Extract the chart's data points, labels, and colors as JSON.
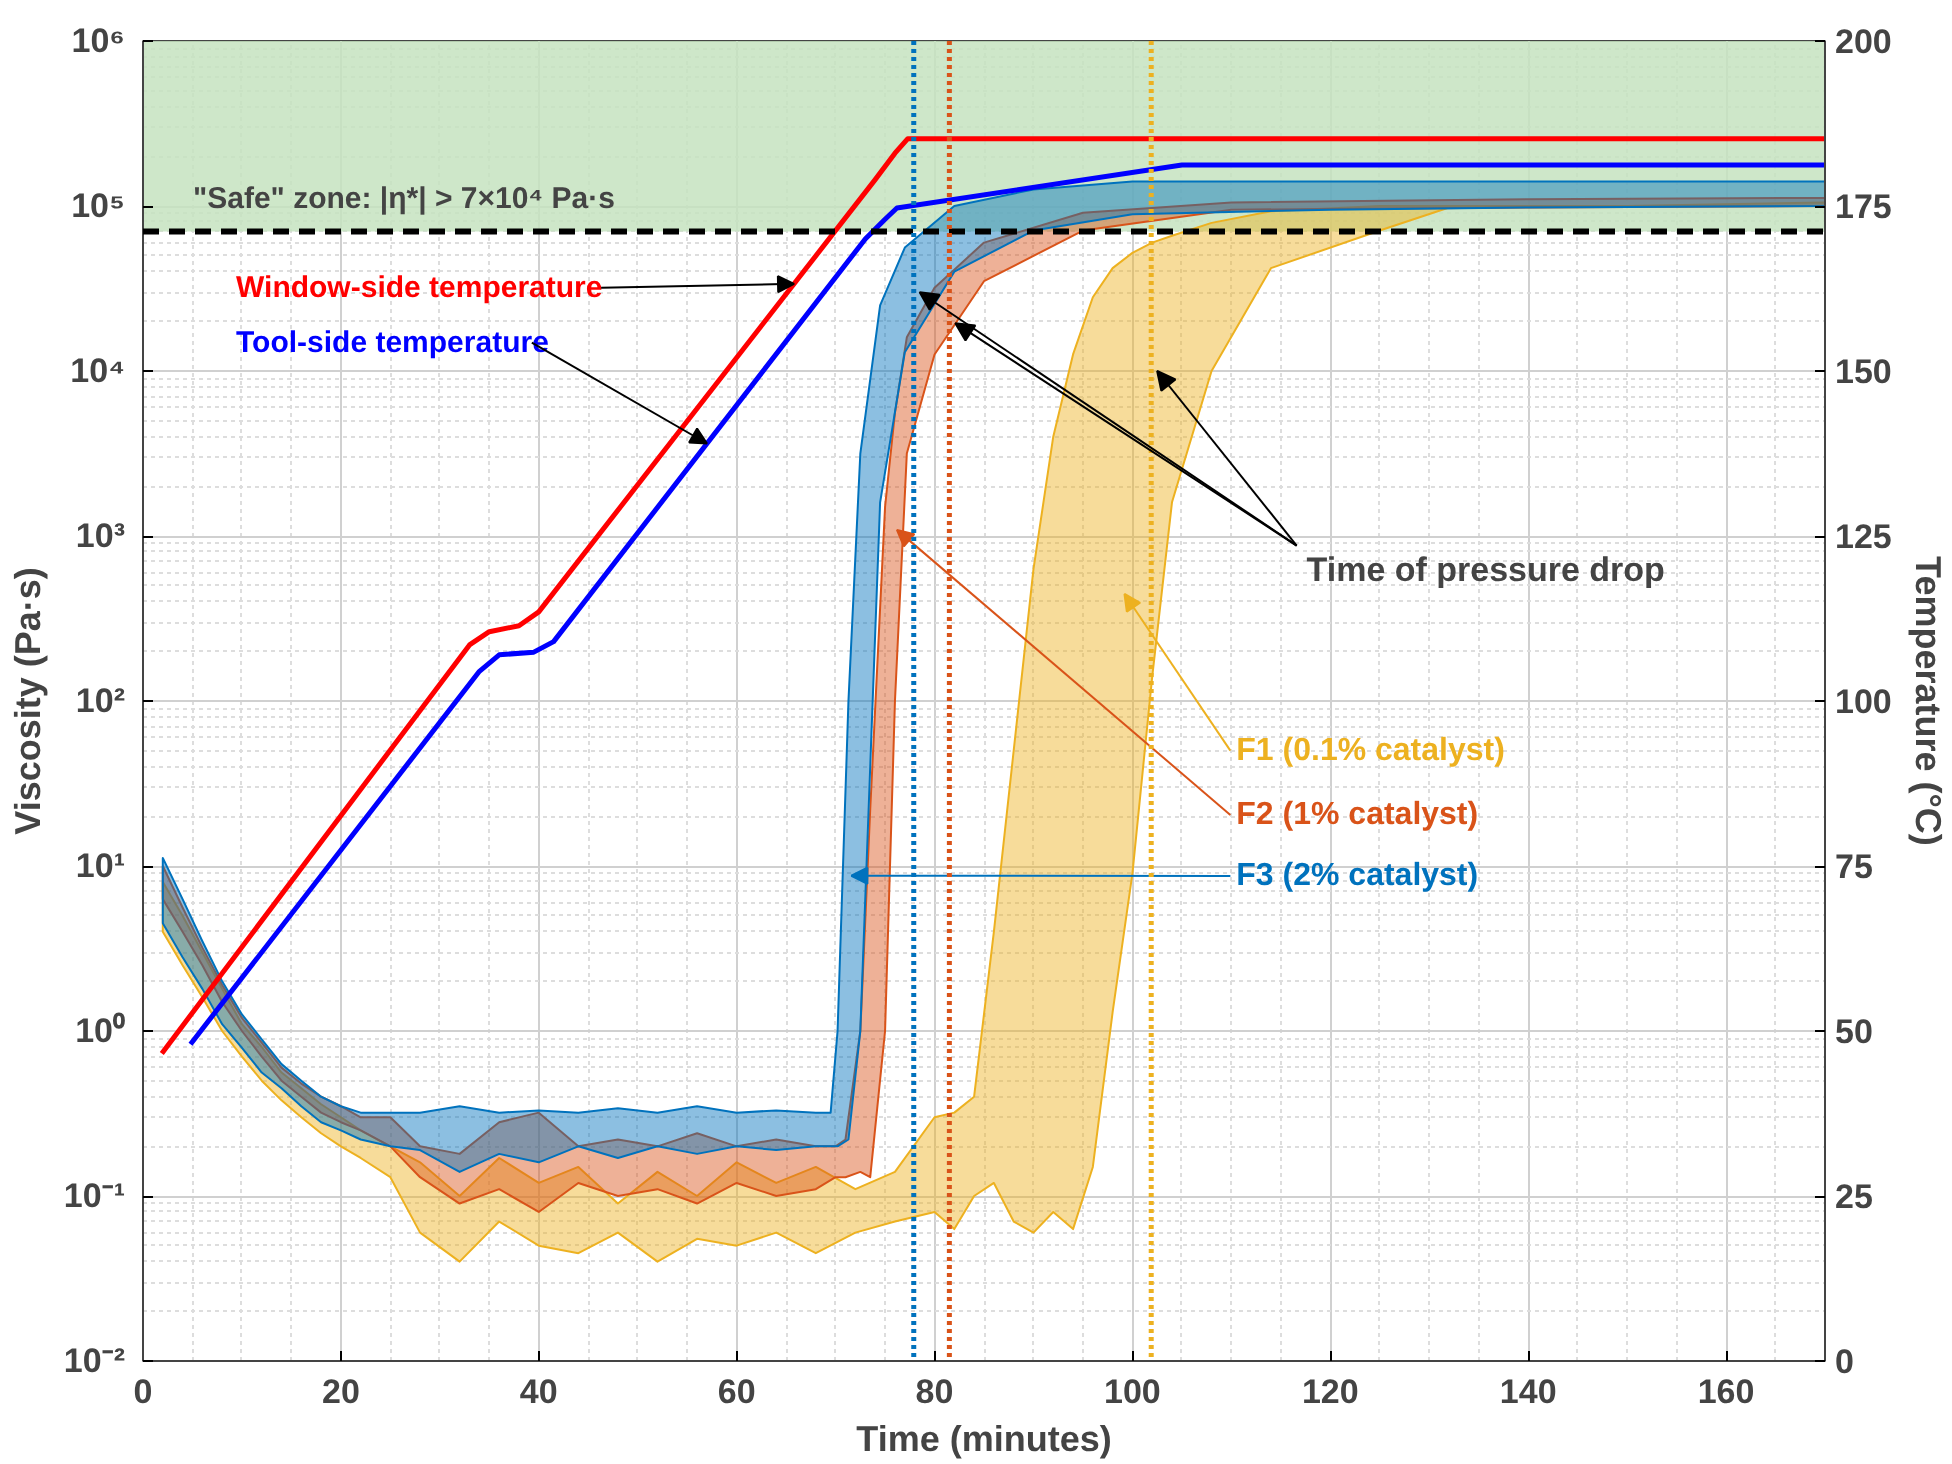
{
  "chart_data": {
    "type": "line",
    "xlabel": "Time (minutes)",
    "ylabel": "Viscosity (Pa·s)",
    "y2label": "Temperature (°C)",
    "xlim": [
      0,
      170
    ],
    "xticks": [
      0,
      20,
      40,
      60,
      80,
      100,
      120,
      140,
      160
    ],
    "ylim": [
      0.01,
      1000000
    ],
    "log": "y",
    "yticks": [
      {
        "value": 0.01,
        "label": "10⁻²"
      },
      {
        "value": 0.1,
        "label": "10⁻¹"
      },
      {
        "value": 1,
        "label": "10⁰"
      },
      {
        "value": 10,
        "label": "10¹"
      },
      {
        "value": 100,
        "label": "10²"
      },
      {
        "value": 1000,
        "label": "10³"
      },
      {
        "value": 10000,
        "label": "10⁴"
      },
      {
        "value": 100000,
        "label": "10⁵"
      },
      {
        "value": 1000000,
        "label": "10⁶"
      }
    ],
    "y2lim": [
      0,
      200
    ],
    "y2ticks": [
      0,
      25,
      50,
      75,
      100,
      125,
      150,
      175,
      200
    ],
    "grid": true,
    "bands": [
      {
        "axis": "y",
        "from": 70000,
        "to": 1000000,
        "label": "\"Safe\" zone: |η*| > 7×10⁴ Pa·s",
        "color": "#c6e3c0"
      }
    ],
    "ref_lines": [
      {
        "axis": "y",
        "value": 70000,
        "color": "#000000",
        "line_style": "dashed"
      },
      {
        "axis": "x",
        "value": 77.9,
        "color": "#0072bd",
        "line_style": "dotted"
      },
      {
        "axis": "x",
        "value": 81.5,
        "color": "#d95319",
        "line_style": "dotted"
      },
      {
        "axis": "x",
        "value": 101.9,
        "color": "#edb120",
        "line_style": "dotted"
      }
    ],
    "annotations": [
      {
        "text": "Time of pressure drop",
        "x": 101.9,
        "y": 10000
      }
    ],
    "series": [
      {
        "name": "F1 (0.1% catalyst)",
        "type": "area",
        "color": "#edb120",
        "values": [
          null,
          null,
          null,
          null,
          null,
          null,
          null,
          null,
          null,
          null,
          null,
          null,
          null,
          null,
          null,
          null,
          null,
          null,
          null,
          null,
          null,
          null,
          null,
          null,
          null,
          null,
          null,
          null,
          null,
          null,
          null,
          null,
          null,
          null,
          null,
          null,
          null,
          null,
          null,
          null,
          null,
          null,
          null,
          null
        ],
        "x": [
          2,
          4,
          6,
          8,
          10,
          12,
          14,
          16,
          18,
          20,
          22,
          25,
          28,
          32,
          36,
          40,
          44,
          48,
          52,
          56,
          60,
          64,
          68,
          72,
          76,
          80,
          82,
          84,
          86,
          88,
          90,
          92,
          94,
          96,
          98,
          100,
          102,
          104,
          108,
          114,
          125,
          132,
          150,
          170
        ],
        "upper": [
          8,
          5,
          3,
          1.8,
          1.1,
          0.8,
          0.56,
          0.45,
          0.36,
          0.3,
          0.25,
          0.2,
          0.16,
          0.1,
          0.17,
          0.12,
          0.15,
          0.09,
          0.14,
          0.1,
          0.16,
          0.12,
          0.15,
          0.11,
          0.14,
          0.3,
          0.32,
          0.4,
          4.0,
          50,
          630,
          4000,
          12600,
          28000,
          42000,
          52000,
          60000,
          66000,
          79000,
          93000,
          100000,
          100000,
          100000,
          105000
        ],
        "lower": [
          4,
          2.5,
          1.6,
          1.0,
          0.7,
          0.5,
          0.38,
          0.3,
          0.24,
          0.2,
          0.17,
          0.13,
          0.06,
          0.04,
          0.07,
          0.05,
          0.045,
          0.06,
          0.04,
          0.055,
          0.05,
          0.06,
          0.045,
          0.06,
          0.07,
          0.08,
          0.063,
          0.1,
          0.12,
          0.07,
          0.06,
          0.08,
          0.063,
          0.15,
          1.3,
          9,
          140,
          1600,
          10000,
          42000,
          71000,
          98000,
          100000,
          100000
        ]
      },
      {
        "name": "F2 (1% catalyst)",
        "type": "area",
        "color": "#d95319",
        "values": [
          null,
          null,
          null,
          null,
          null,
          null,
          null,
          null,
          null,
          null,
          null,
          null,
          null,
          null,
          null,
          null,
          null,
          null,
          null,
          null,
          null,
          null,
          null,
          null,
          null,
          null,
          null,
          null,
          null,
          null,
          null,
          null,
          null,
          null,
          null,
          null
        ],
        "x": [
          2,
          4,
          6,
          8,
          10,
          12,
          14,
          16,
          18,
          20,
          22,
          25,
          28,
          32,
          36,
          40,
          44,
          48,
          52,
          56,
          60,
          64,
          68,
          70,
          71,
          72.5,
          73.5,
          75,
          76,
          77.2,
          80,
          85,
          95,
          110,
          140,
          170
        ],
        "upper": [
          10,
          5.6,
          3.2,
          1.9,
          1.2,
          0.85,
          0.6,
          0.48,
          0.4,
          0.35,
          0.3,
          0.3,
          0.2,
          0.18,
          0.28,
          0.32,
          0.2,
          0.22,
          0.2,
          0.24,
          0.2,
          0.22,
          0.2,
          0.2,
          0.22,
          1.0,
          22,
          1500,
          5600,
          16000,
          32000,
          60000,
          91000,
          105000,
          110000,
          112000
        ],
        "lower": [
          6.3,
          4.0,
          2.5,
          1.5,
          1.0,
          0.7,
          0.5,
          0.4,
          0.32,
          0.28,
          0.25,
          0.2,
          0.13,
          0.09,
          0.11,
          0.08,
          0.12,
          0.1,
          0.11,
          0.09,
          0.12,
          0.1,
          0.11,
          0.13,
          0.13,
          0.14,
          0.13,
          1.0,
          100,
          3160,
          12600,
          35000,
          71000,
          95000,
          98000,
          100000
        ]
      },
      {
        "name": "F3 (2% catalyst)",
        "type": "area",
        "color": "#0072bd",
        "values": [
          null,
          null,
          null,
          null,
          null,
          null,
          null,
          null,
          null,
          null,
          null,
          null,
          null,
          null,
          null,
          null,
          null,
          null,
          null,
          null,
          null,
          null,
          null,
          null,
          null,
          null,
          null,
          null,
          null,
          null,
          null,
          null,
          null,
          null,
          null
        ],
        "x": [
          2,
          4,
          6,
          8,
          10,
          12,
          14,
          16,
          18,
          20,
          22,
          25,
          28,
          32,
          36,
          40,
          44,
          48,
          52,
          56,
          60,
          64,
          68,
          69.5,
          70.2,
          71.3,
          72.5,
          74.5,
          77,
          82,
          90,
          100,
          120,
          140,
          170
        ],
        "upper": [
          11.2,
          6.3,
          3.5,
          2.0,
          1.26,
          0.89,
          0.63,
          0.5,
          0.4,
          0.35,
          0.32,
          0.32,
          0.32,
          0.35,
          0.32,
          0.33,
          0.32,
          0.34,
          0.32,
          0.35,
          0.32,
          0.33,
          0.32,
          0.32,
          1.0,
          100,
          3160,
          25000,
          56000,
          100000,
          126000,
          141000,
          141000,
          141000,
          141000
        ],
        "lower": [
          4.5,
          2.8,
          1.8,
          1.1,
          0.79,
          0.56,
          0.45,
          0.35,
          0.28,
          0.25,
          0.22,
          0.2,
          0.19,
          0.14,
          0.18,
          0.16,
          0.2,
          0.17,
          0.2,
          0.18,
          0.2,
          0.19,
          0.2,
          0.2,
          0.2,
          0.22,
          1.0,
          1600,
          13000,
          40000,
          71000,
          89000,
          95000,
          98000,
          100000
        ]
      },
      {
        "name": "Window-side temperature",
        "axis": "y2",
        "color": "#ff0000",
        "x": [
          1.9,
          33,
          35,
          38,
          40,
          74,
          76,
          77.3,
          170
        ],
        "values": [
          46.6,
          108.5,
          110.5,
          111.4,
          113.5,
          179,
          183,
          185.2,
          185.2
        ]
      },
      {
        "name": "Tool-side temperature",
        "axis": "y2",
        "color": "#0000ff",
        "x": [
          4.8,
          34,
          36,
          39.5,
          41.5,
          73,
          75,
          76.2,
          105,
          170
        ],
        "values": [
          48,
          104.5,
          107,
          107.4,
          109,
          170,
          173,
          174.7,
          181.2,
          181.2
        ]
      }
    ]
  }
}
